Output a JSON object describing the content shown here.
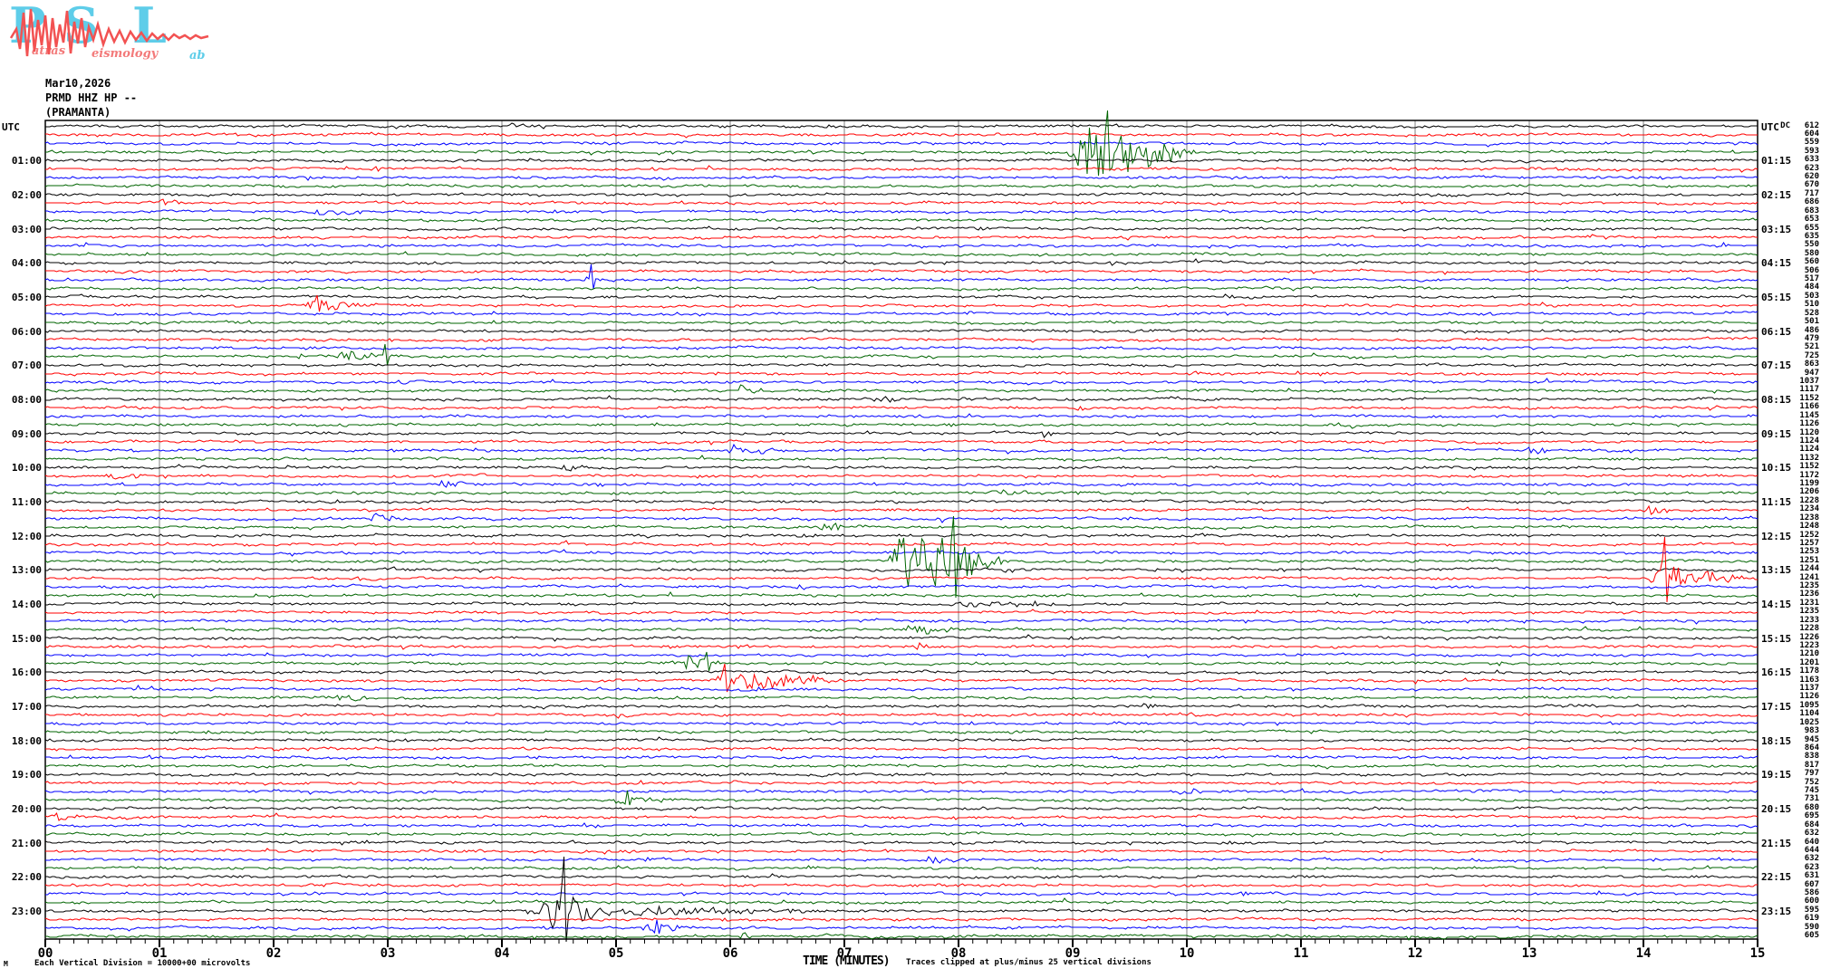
{
  "logo": {
    "letters": [
      "P",
      "S",
      "L"
    ],
    "words": [
      "atras",
      "eismology",
      "ab"
    ],
    "big_color": "#5ecde9",
    "word_color": "#f37a7a",
    "zigzag_color": "#f25252"
  },
  "header": {
    "date": "Mar10,2026",
    "station": "PRMD HHZ HP --",
    "station_name": "(PRAMANTA)"
  },
  "axis": {
    "left_header": "UTC",
    "right_header": "UTC",
    "dc_header": "DC",
    "x_title": "TIME (MINUTES)",
    "clip_note": "Traces clipped at plus/minus 25 vertical divisions",
    "scale_note": "Each Vertical Division = 10000+00 microvolts",
    "watermark": "M",
    "x_ticks": [
      "00",
      "01",
      "02",
      "03",
      "04",
      "05",
      "06",
      "07",
      "08",
      "09",
      "10",
      "11",
      "12",
      "13",
      "14",
      "15"
    ]
  },
  "chart_data": {
    "type": "line",
    "subtype": "helicorder-seismogram",
    "title": "PRMD HHZ HP -- (PRAMANTA) Mar10,2026",
    "minutes_per_line": 15,
    "lines": 96,
    "trace_color_cycle": [
      "#000000",
      "#ff0000",
      "#0000ff",
      "#006400"
    ],
    "grid_color": "#808080",
    "left_labels": [
      {
        "row": 1,
        "text": "UTC"
      },
      {
        "row": 5,
        "text": "01:00"
      },
      {
        "row": 9,
        "text": "02:00"
      },
      {
        "row": 13,
        "text": "03:00"
      },
      {
        "row": 17,
        "text": "04:00"
      },
      {
        "row": 21,
        "text": "05:00"
      },
      {
        "row": 25,
        "text": "06:00"
      },
      {
        "row": 29,
        "text": "07:00"
      },
      {
        "row": 33,
        "text": "08:00"
      },
      {
        "row": 37,
        "text": "09:00"
      },
      {
        "row": 41,
        "text": "10:00"
      },
      {
        "row": 45,
        "text": "11:00"
      },
      {
        "row": 49,
        "text": "12:00"
      },
      {
        "row": 53,
        "text": "13:00"
      },
      {
        "row": 57,
        "text": "14:00"
      },
      {
        "row": 61,
        "text": "15:00"
      },
      {
        "row": 65,
        "text": "16:00"
      },
      {
        "row": 69,
        "text": "17:00"
      },
      {
        "row": 73,
        "text": "18:00"
      },
      {
        "row": 77,
        "text": "19:00"
      },
      {
        "row": 81,
        "text": "20:00"
      },
      {
        "row": 85,
        "text": "21:00"
      },
      {
        "row": 89,
        "text": "22:00"
      },
      {
        "row": 93,
        "text": "23:00"
      }
    ],
    "right_labels": [
      {
        "row": 1,
        "text": "UTC"
      },
      {
        "row": 5,
        "text": "01:15"
      },
      {
        "row": 9,
        "text": "02:15"
      },
      {
        "row": 13,
        "text": "03:15"
      },
      {
        "row": 17,
        "text": "04:15"
      },
      {
        "row": 21,
        "text": "05:15"
      },
      {
        "row": 25,
        "text": "06:15"
      },
      {
        "row": 29,
        "text": "07:15"
      },
      {
        "row": 33,
        "text": "08:15"
      },
      {
        "row": 37,
        "text": "09:15"
      },
      {
        "row": 41,
        "text": "10:15"
      },
      {
        "row": 45,
        "text": "11:15"
      },
      {
        "row": 49,
        "text": "12:15"
      },
      {
        "row": 53,
        "text": "13:15"
      },
      {
        "row": 57,
        "text": "14:15"
      },
      {
        "row": 61,
        "text": "15:15"
      },
      {
        "row": 65,
        "text": "16:15"
      },
      {
        "row": 69,
        "text": "17:15"
      },
      {
        "row": 73,
        "text": "18:15"
      },
      {
        "row": 77,
        "text": "19:15"
      },
      {
        "row": 81,
        "text": "20:15"
      },
      {
        "row": 85,
        "text": "21:15"
      },
      {
        "row": 89,
        "text": "22:15"
      },
      {
        "row": 93,
        "text": "23:15"
      }
    ],
    "dc_values": [
      612,
      604,
      559,
      593,
      633,
      623,
      620,
      670,
      717,
      686,
      683,
      653,
      655,
      635,
      550,
      580,
      560,
      506,
      517,
      484,
      503,
      510,
      528,
      501,
      486,
      479,
      521,
      725,
      863,
      947,
      1037,
      1117,
      1152,
      1166,
      1145,
      1126,
      1120,
      1124,
      1124,
      1132,
      1152,
      1172,
      1199,
      1206,
      1228,
      1234,
      1238,
      1248,
      1252,
      1257,
      1253,
      1251,
      1244,
      1241,
      1235,
      1236,
      1231,
      1235,
      1233,
      1228,
      1226,
      1223,
      1210,
      1201,
      1178,
      1163,
      1137,
      1126,
      1095,
      1104,
      1025,
      983,
      945,
      864,
      838,
      817,
      797,
      752,
      745,
      731,
      680,
      695,
      684,
      632,
      640,
      644,
      632,
      623,
      631,
      607,
      586,
      600,
      595,
      619,
      590,
      605
    ],
    "events": [
      {
        "row": 1,
        "s": 4.05,
        "e": 4.35,
        "a": 2
      },
      {
        "row": 4,
        "s": 8.95,
        "e": 10.1,
        "a": 24,
        "sp": 9.3,
        "su": 46,
        "sd": 20,
        "d": true
      },
      {
        "row": 6,
        "s": 2.88,
        "e": 3.02,
        "a": 2
      },
      {
        "row": 10,
        "s": 0.98,
        "e": 1.25,
        "a": 5
      },
      {
        "row": 11,
        "s": 2.28,
        "e": 2.9,
        "a": 4
      },
      {
        "row": 11,
        "s": 4.38,
        "e": 4.5,
        "a": 3
      },
      {
        "row": 13,
        "s": 8.1,
        "e": 8.4,
        "a": 2
      },
      {
        "row": 14,
        "s": 9.4,
        "e": 9.62,
        "a": 3
      },
      {
        "row": 14,
        "s": 11.6,
        "e": 11.76,
        "a": 2
      },
      {
        "row": 15,
        "s": 0.33,
        "e": 0.56,
        "a": 3
      },
      {
        "row": 17,
        "s": 9.3,
        "e": 9.55,
        "a": 2.5
      },
      {
        "row": 19,
        "s": 4.7,
        "e": 4.95,
        "a": 4,
        "sp": 4.79,
        "su": 17,
        "sd": 10
      },
      {
        "row": 21,
        "s": 10.3,
        "e": 10.55,
        "a": 2.5
      },
      {
        "row": 22,
        "s": 2.24,
        "e": 3.02,
        "a": 6,
        "sp": 2.38,
        "su": 11,
        "sd": 7
      },
      {
        "row": 28,
        "s": 2.2,
        "e": 2.36,
        "a": 3
      },
      {
        "row": 28,
        "s": 2.54,
        "e": 3.06,
        "a": 5,
        "sp": 2.97,
        "su": 14,
        "sd": 9
      },
      {
        "row": 30,
        "s": 10.0,
        "e": 10.18,
        "a": 3
      },
      {
        "row": 31,
        "s": 3.08,
        "e": 3.24,
        "a": 3
      },
      {
        "row": 31,
        "s": 4.42,
        "e": 4.56,
        "a": 3
      },
      {
        "row": 32,
        "s": 6.05,
        "e": 6.36,
        "a": 5
      },
      {
        "row": 33,
        "s": 7.25,
        "e": 7.62,
        "a": 4
      },
      {
        "row": 34,
        "s": 9.0,
        "e": 9.2,
        "a": 3
      },
      {
        "row": 34,
        "s": 14.5,
        "e": 14.85,
        "a": 3
      },
      {
        "row": 37,
        "s": 8.65,
        "e": 8.92,
        "a": 4
      },
      {
        "row": 39,
        "s": 5.95,
        "e": 6.55,
        "a": 5
      },
      {
        "row": 39,
        "s": 12.95,
        "e": 13.3,
        "a": 4
      },
      {
        "row": 41,
        "s": 4.5,
        "e": 4.82,
        "a": 4
      },
      {
        "row": 42,
        "s": 0.5,
        "e": 0.94,
        "a": 3
      },
      {
        "row": 43,
        "s": 3.42,
        "e": 3.86,
        "a": 3
      },
      {
        "row": 44,
        "s": 2.7,
        "e": 2.96,
        "a": 3
      },
      {
        "row": 44,
        "s": 8.25,
        "e": 8.62,
        "a": 3.5
      },
      {
        "row": 46,
        "s": 14.0,
        "e": 14.32,
        "a": 4
      },
      {
        "row": 47,
        "s": 2.78,
        "e": 3.22,
        "a": 5
      },
      {
        "row": 48,
        "s": 6.75,
        "e": 7.12,
        "a": 4
      },
      {
        "row": 49,
        "s": 6.58,
        "e": 6.8,
        "a": 3
      },
      {
        "row": 49,
        "s": 9.9,
        "e": 10.3,
        "a": 2.5
      },
      {
        "row": 52,
        "s": 7.4,
        "e": 8.4,
        "a": 28,
        "sp": 7.96,
        "su": 50,
        "sd": 40,
        "d": true
      },
      {
        "row": 53,
        "s": 8.35,
        "e": 8.62,
        "a": 2.5
      },
      {
        "row": 53,
        "s": 10.8,
        "e": 10.96,
        "a": 3
      },
      {
        "row": 54,
        "s": 14.02,
        "e": 14.98,
        "a": 9,
        "sp": 14.19,
        "su": 46,
        "sd": 26,
        "d": true
      },
      {
        "row": 55,
        "s": 6.58,
        "e": 6.72,
        "a": 3
      },
      {
        "row": 56,
        "s": 9.58,
        "e": 9.74,
        "a": 2.5
      },
      {
        "row": 57,
        "s": 7.9,
        "e": 9.05,
        "a": 3
      },
      {
        "row": 60,
        "s": 7.5,
        "e": 8.12,
        "a": 5
      },
      {
        "row": 62,
        "s": 7.62,
        "e": 7.78,
        "a": 5
      },
      {
        "row": 64,
        "s": 5.58,
        "e": 5.98,
        "a": 7,
        "sp": 5.79,
        "su": 13,
        "sd": 8
      },
      {
        "row": 65,
        "s": 12.18,
        "e": 12.35,
        "a": 2.5
      },
      {
        "row": 66,
        "s": 5.83,
        "e": 7.05,
        "a": 9,
        "sp": 5.95,
        "su": 19,
        "sd": 12,
        "d": true
      },
      {
        "row": 68,
        "s": 2.54,
        "e": 2.88,
        "a": 5
      },
      {
        "row": 69,
        "s": 9.6,
        "e": 9.76,
        "a": 2.5
      },
      {
        "row": 70,
        "s": 5.0,
        "e": 5.14,
        "a": 2.5
      },
      {
        "row": 72,
        "s": 9.55,
        "e": 9.7,
        "a": 2.5
      },
      {
        "row": 74,
        "s": 1.98,
        "e": 2.16,
        "a": 3
      },
      {
        "row": 75,
        "s": 0.9,
        "e": 1.05,
        "a": 3
      },
      {
        "row": 76,
        "s": 1.85,
        "e": 2.02,
        "a": 3
      },
      {
        "row": 78,
        "s": 6.0,
        "e": 6.12,
        "a": 3
      },
      {
        "row": 79,
        "s": 9.88,
        "e": 10.3,
        "a": 3.5
      },
      {
        "row": 80,
        "s": 4.96,
        "e": 5.4,
        "a": 6,
        "sp": 5.1,
        "su": 10,
        "sd": 6
      },
      {
        "row": 82,
        "s": 0.05,
        "e": 0.42,
        "a": 4
      },
      {
        "row": 85,
        "s": 10.35,
        "e": 10.52,
        "a": 2.5
      },
      {
        "row": 87,
        "s": 7.7,
        "e": 8.12,
        "a": 3.5
      },
      {
        "row": 91,
        "s": 10.45,
        "e": 10.62,
        "a": 2.5
      },
      {
        "row": 93,
        "s": 4.28,
        "e": 4.95,
        "a": 22,
        "sp": 4.55,
        "su": 60,
        "sd": 34,
        "d": true
      },
      {
        "row": 93,
        "s": 4.95,
        "e": 7.2,
        "a": 4
      },
      {
        "row": 94,
        "s": 5.93,
        "e": 6.06,
        "a": 4
      },
      {
        "row": 95,
        "s": 5.2,
        "e": 5.72,
        "a": 6,
        "sp": 5.35,
        "su": 9,
        "sd": 6
      },
      {
        "row": 96,
        "s": 6.08,
        "e": 6.22,
        "a": 3
      }
    ]
  }
}
